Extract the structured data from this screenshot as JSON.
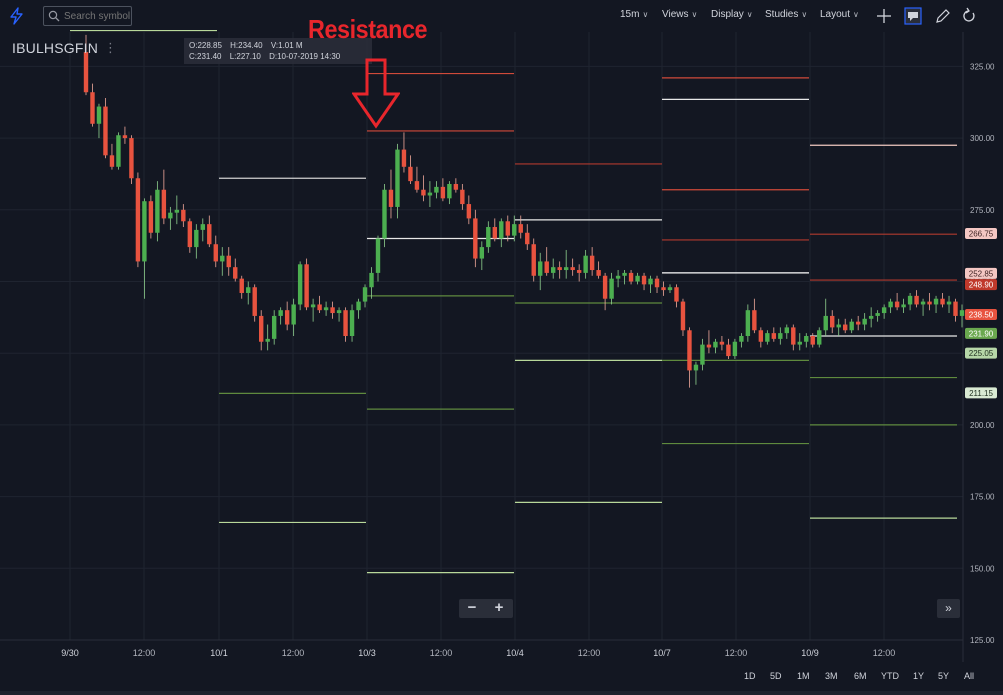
{
  "toolbar": {
    "search_placeholder": "Search symbol",
    "interval": "15m",
    "views": "Views",
    "display": "Display",
    "studies": "Studies",
    "layout": "Layout",
    "icons": [
      "bolt-icon",
      "search-icon",
      "crosshair-icon",
      "comment-icon",
      "draw-icon",
      "undo-icon"
    ]
  },
  "symbol": {
    "name": "IBULHSGFIN",
    "menu_glyph": "⋮"
  },
  "ohlc": {
    "open": "O:228.85",
    "high": "H:234.40",
    "volume": "V:1.01 M",
    "close": "C:231.40",
    "low": "L:227.10",
    "date": "D:10-07-2019 14:30"
  },
  "annotation": {
    "text": "Resistance",
    "color": "#e8262c"
  },
  "range_buttons": [
    "1D",
    "5D",
    "1M",
    "3M",
    "6M",
    "YTD",
    "1Y",
    "5Y",
    "All"
  ],
  "colors": {
    "up": "#4caf50",
    "down": "#e8533f",
    "background": "#131722",
    "grid": "#1f2430",
    "axis_text": "#b2b5be"
  },
  "chart_data": {
    "type": "candlestick",
    "ylim": [
      125,
      337
    ],
    "y_ticks": [
      "125.00",
      "150.00",
      "175.00",
      "200.00",
      "225.00",
      "250.00",
      "275.00",
      "300.00",
      "325.00"
    ],
    "x_axis_labels": [
      {
        "label": "9/30",
        "day": 0,
        "frac": 0.0
      },
      {
        "label": "12:00",
        "day": 0,
        "frac": 0.5
      },
      {
        "label": "10/1",
        "day": 1,
        "frac": 0.0
      },
      {
        "label": "12:00",
        "day": 1,
        "frac": 0.5
      },
      {
        "label": "10/3",
        "day": 2,
        "frac": 0.0
      },
      {
        "label": "12:00",
        "day": 2,
        "frac": 0.5
      },
      {
        "label": "10/4",
        "day": 3,
        "frac": 0.0
      },
      {
        "label": "12:00",
        "day": 3,
        "frac": 0.5
      },
      {
        "label": "10/7",
        "day": 4,
        "frac": 0.0
      },
      {
        "label": "12:00",
        "day": 4,
        "frac": 0.5
      },
      {
        "label": "10/9",
        "day": 5,
        "frac": 0.0
      },
      {
        "label": "12:00",
        "day": 5,
        "frac": 0.5
      }
    ],
    "candles": [
      [
        330,
        336,
        315,
        316
      ],
      [
        316,
        319,
        304,
        305
      ],
      [
        305,
        312,
        300,
        311
      ],
      [
        311,
        314,
        293,
        294
      ],
      [
        294,
        298,
        289,
        290
      ],
      [
        290,
        302,
        289,
        301
      ],
      [
        301,
        304,
        298,
        300
      ],
      [
        300,
        301,
        284,
        286
      ],
      [
        286,
        288,
        255,
        257
      ],
      [
        257,
        279,
        244,
        278
      ],
      [
        278,
        280,
        265,
        267
      ],
      [
        267,
        285,
        264,
        282
      ],
      [
        282,
        289,
        270,
        272
      ],
      [
        272,
        276,
        268,
        274
      ],
      [
        274,
        280,
        270,
        275
      ],
      [
        275,
        277,
        269,
        271
      ],
      [
        271,
        272,
        260,
        262
      ],
      [
        262,
        270,
        258,
        268
      ],
      [
        268,
        272,
        264,
        270
      ],
      [
        270,
        273,
        262,
        263
      ],
      [
        263,
        266,
        255,
        257
      ],
      [
        257,
        262,
        252,
        259
      ],
      [
        259,
        262,
        252,
        255
      ],
      [
        255,
        258,
        250,
        251
      ],
      [
        251,
        252,
        244,
        246
      ],
      [
        246,
        250,
        242,
        248
      ],
      [
        248,
        249,
        236,
        238
      ],
      [
        238,
        240,
        226,
        229
      ],
      [
        229,
        235,
        226,
        230
      ],
      [
        230,
        240,
        228,
        238
      ],
      [
        238,
        241,
        235,
        240
      ],
      [
        240,
        243,
        233,
        235
      ],
      [
        235,
        244,
        231,
        242
      ],
      [
        242,
        257,
        240,
        256
      ],
      [
        256,
        258,
        240,
        241
      ],
      [
        241,
        244,
        236,
        242
      ],
      [
        242,
        245,
        239,
        240
      ],
      [
        240,
        243,
        238,
        241
      ],
      [
        241,
        243,
        237,
        239
      ],
      [
        239,
        241,
        236,
        240
      ],
      [
        240,
        241,
        229,
        231
      ],
      [
        231,
        242,
        229,
        240
      ],
      [
        240,
        244,
        237,
        243
      ],
      [
        243,
        249,
        241,
        248
      ],
      [
        248,
        255,
        244,
        253
      ],
      [
        253,
        266,
        250,
        265
      ],
      [
        265,
        284,
        262,
        282
      ],
      [
        282,
        289,
        272,
        276
      ],
      [
        276,
        298,
        272,
        296
      ],
      [
        296,
        302,
        288,
        290
      ],
      [
        290,
        294,
        284,
        285
      ],
      [
        285,
        290,
        281,
        282
      ],
      [
        282,
        287,
        278,
        280
      ],
      [
        280,
        285,
        276,
        281
      ],
      [
        281,
        285,
        279,
        283
      ],
      [
        283,
        286,
        278,
        279
      ],
      [
        279,
        285,
        277,
        284
      ],
      [
        284,
        286,
        281,
        282
      ],
      [
        282,
        284,
        275,
        277
      ],
      [
        277,
        280,
        270,
        272
      ],
      [
        272,
        275,
        255,
        258
      ],
      [
        258,
        264,
        254,
        262
      ],
      [
        262,
        271,
        260,
        269
      ],
      [
        269,
        272,
        264,
        265
      ],
      [
        265,
        272,
        262,
        271
      ],
      [
        271,
        273,
        264,
        266
      ],
      [
        266,
        273,
        264,
        270
      ],
      [
        270,
        273,
        265,
        267
      ],
      [
        267,
        270,
        261,
        263
      ],
      [
        263,
        265,
        250,
        252
      ],
      [
        252,
        260,
        247,
        257
      ],
      [
        257,
        262,
        252,
        253
      ],
      [
        253,
        258,
        251,
        255
      ],
      [
        255,
        257,
        251,
        254
      ],
      [
        254,
        261,
        251,
        255
      ],
      [
        255,
        258,
        252,
        254
      ],
      [
        254,
        256,
        250,
        253
      ],
      [
        253,
        261,
        251,
        259
      ],
      [
        259,
        262,
        252,
        254
      ],
      [
        254,
        257,
        251,
        252
      ],
      [
        252,
        253,
        240,
        244
      ],
      [
        244,
        253,
        242,
        251
      ],
      [
        251,
        254,
        248,
        252
      ],
      [
        252,
        254,
        249,
        253
      ],
      [
        253,
        254,
        249,
        250
      ],
      [
        250,
        253,
        249,
        252
      ],
      [
        252,
        253,
        247,
        249
      ],
      [
        249,
        252,
        246,
        251
      ],
      [
        251,
        252,
        246,
        248
      ],
      [
        248,
        250,
        245,
        247
      ],
      [
        247,
        249,
        246,
        248
      ],
      [
        248,
        249,
        241,
        243
      ],
      [
        243,
        244,
        231,
        233
      ],
      [
        233,
        234,
        213,
        219
      ],
      [
        219,
        222,
        214,
        221
      ],
      [
        221,
        230,
        219,
        228
      ],
      [
        228,
        233,
        225,
        227
      ],
      [
        227,
        230,
        225,
        229
      ],
      [
        229,
        231,
        226,
        228
      ],
      [
        228,
        230,
        223,
        224
      ],
      [
        224,
        230,
        223,
        229
      ],
      [
        229,
        232,
        227,
        231
      ],
      [
        231,
        242,
        229,
        240
      ],
      [
        240,
        244,
        232,
        233
      ],
      [
        233,
        234,
        227,
        229
      ],
      [
        229,
        233,
        228,
        232
      ],
      [
        232,
        234,
        229,
        230
      ],
      [
        230,
        234,
        228,
        232
      ],
      [
        232,
        235,
        230,
        234
      ],
      [
        234,
        235,
        226,
        228
      ],
      [
        228,
        232,
        226,
        229
      ],
      [
        229,
        232,
        227,
        231
      ],
      [
        231,
        232,
        227,
        228
      ],
      [
        228,
        234,
        227,
        233
      ],
      [
        233,
        244,
        231,
        238
      ],
      [
        238,
        240,
        232,
        234
      ],
      [
        234,
        237,
        231,
        235
      ],
      [
        235,
        237,
        232,
        233
      ],
      [
        233,
        237,
        232,
        236
      ],
      [
        236,
        238,
        233,
        235
      ],
      [
        235,
        239,
        233,
        237
      ],
      [
        237,
        241,
        234,
        238
      ],
      [
        238,
        240,
        236,
        239
      ],
      [
        239,
        242,
        237,
        241
      ],
      [
        241,
        244,
        239,
        243
      ],
      [
        243,
        246,
        240,
        241
      ],
      [
        241,
        244,
        239,
        242
      ],
      [
        242,
        246,
        240,
        245
      ],
      [
        245,
        247,
        241,
        242
      ],
      [
        242,
        244,
        238,
        243
      ],
      [
        243,
        246,
        240,
        242
      ],
      [
        242,
        245,
        239,
        244
      ],
      [
        244,
        246,
        241,
        242
      ],
      [
        242,
        245,
        239,
        243
      ],
      [
        243,
        244,
        236,
        238
      ],
      [
        238,
        242,
        234,
        240
      ]
    ],
    "level_segments": [
      {
        "day": 0,
        "lines": [
          {
            "v": 337.5,
            "c": "#b8d89a"
          }
        ]
      },
      {
        "day": 1,
        "lines": [
          {
            "v": 286,
            "c": "#d0d0d0"
          },
          {
            "v": 211,
            "c": "#5f8a3e"
          },
          {
            "v": 166,
            "c": "#b8d89a"
          }
        ]
      },
      {
        "day": 2,
        "lines": [
          {
            "v": 322.5,
            "c": "#d04a3a"
          },
          {
            "v": 302.5,
            "c": "#d04a3a"
          },
          {
            "v": 265,
            "c": "#e8e8e8"
          },
          {
            "v": 245,
            "c": "#5f8a3e"
          },
          {
            "v": 205.5,
            "c": "#5f8a3e"
          },
          {
            "v": 148.5,
            "c": "#b8d89a"
          }
        ]
      },
      {
        "day": 3,
        "lines": [
          {
            "v": 291,
            "c": "#b03a2e"
          },
          {
            "v": 271.5,
            "c": "#e8e8e8"
          },
          {
            "v": 242.5,
            "c": "#5f8a3e"
          },
          {
            "v": 222.5,
            "c": "#b8d89a"
          },
          {
            "v": 173,
            "c": "#b8d89a"
          }
        ]
      },
      {
        "day": 4,
        "lines": [
          {
            "v": 321,
            "c": "#d04a3a"
          },
          {
            "v": 313.5,
            "c": "#e8e8e8"
          },
          {
            "v": 282,
            "c": "#d04a3a"
          },
          {
            "v": 264.5,
            "c": "#b03a2e"
          },
          {
            "v": 253,
            "c": "#ffffff"
          },
          {
            "v": 222.5,
            "c": "#5f8a3e"
          },
          {
            "v": 193.5,
            "c": "#5f8a3e"
          }
        ]
      },
      {
        "day": 5,
        "lines": [
          {
            "v": 297.5,
            "c": "#f0c8c0"
          },
          {
            "v": 266.5,
            "c": "#b03a2e"
          },
          {
            "v": 250.5,
            "c": "#b03a2e"
          },
          {
            "v": 231,
            "c": "#e8e8e8"
          },
          {
            "v": 216.5,
            "c": "#5f8a3e"
          },
          {
            "v": 200,
            "c": "#5f8a3e"
          },
          {
            "v": 167.5,
            "c": "#b8d89a"
          }
        ]
      }
    ],
    "price_labels": [
      {
        "text": "266.75",
        "v": 266.75,
        "bg": "#f4c7c3",
        "fg": "#3a1f1f"
      },
      {
        "text": "252.85",
        "v": 252.85,
        "bg": "#f4c7c3",
        "fg": "#3a1f1f"
      },
      {
        "text": "248.90",
        "v": 248.9,
        "bg": "#c0392b",
        "fg": "#ffffff"
      },
      {
        "text": "238.50",
        "v": 238.5,
        "bg": "#e8533f",
        "fg": "#ffffff"
      },
      {
        "text": "231.90",
        "v": 231.9,
        "bg": "#6aa84f",
        "fg": "#ffffff"
      },
      {
        "text": "225.05",
        "v": 225.05,
        "bg": "#b6d7a8",
        "fg": "#1f2f1f"
      },
      {
        "text": "211.15",
        "v": 211.15,
        "bg": "#d9ead3",
        "fg": "#1f2f1f"
      }
    ]
  }
}
